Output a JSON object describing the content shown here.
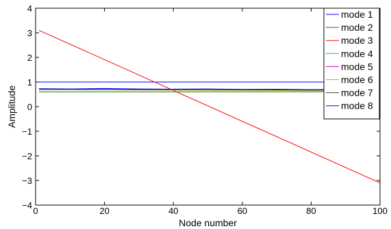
{
  "chart_data": {
    "type": "line",
    "title": "",
    "xlabel": "Node number",
    "ylabel": "Amplitude",
    "xlim": [
      0,
      100
    ],
    "ylim": [
      -4,
      4
    ],
    "xticks": [
      0,
      20,
      40,
      60,
      80,
      100
    ],
    "yticks": [
      -4,
      -3,
      -2,
      -1,
      0,
      1,
      2,
      3,
      4
    ],
    "ytick_labels": [
      "−4",
      "−3",
      "−2",
      "−1",
      "0",
      "1",
      "2",
      "3",
      "4"
    ],
    "grid": false,
    "legend_position": "top-right",
    "series": [
      {
        "name": "mode 1",
        "color": "#0000ff",
        "x": [
          1,
          100
        ],
        "y": [
          1.0,
          1.0
        ]
      },
      {
        "name": "mode 2",
        "color": "#008000",
        "x": [
          1,
          100
        ],
        "y": [
          0.6,
          0.6
        ]
      },
      {
        "name": "mode 3",
        "color": "#ff0000",
        "x": [
          1,
          100
        ],
        "y": [
          3.1,
          -3.1
        ]
      },
      {
        "name": "mode 4",
        "color": "#00bfbf",
        "x": [
          1,
          20,
          40,
          60,
          80,
          100
        ],
        "y": [
          0.7,
          0.69,
          0.68,
          0.67,
          0.66,
          0.65
        ]
      },
      {
        "name": "mode 5",
        "color": "#bf00bf",
        "x": [
          1,
          20,
          40,
          60,
          80,
          100
        ],
        "y": [
          0.71,
          0.7,
          0.69,
          0.68,
          0.67,
          0.66
        ]
      },
      {
        "name": "mode 6",
        "color": "#bfbf00",
        "x": [
          1,
          20,
          40,
          60,
          80,
          100
        ],
        "y": [
          0.69,
          0.68,
          0.67,
          0.66,
          0.65,
          0.64
        ]
      },
      {
        "name": "mode 7",
        "color": "#404040",
        "x": [
          1,
          10,
          30,
          50,
          70,
          90,
          100
        ],
        "y": [
          0.7,
          0.7,
          0.69,
          0.69,
          0.68,
          0.67,
          0.66
        ]
      },
      {
        "name": "mode 8",
        "color": "#0000ff",
        "x": [
          1,
          10,
          20,
          30,
          40,
          50,
          60,
          70,
          80,
          90,
          100
        ],
        "y": [
          0.73,
          0.72,
          0.74,
          0.72,
          0.71,
          0.72,
          0.7,
          0.71,
          0.69,
          0.7,
          0.68
        ]
      }
    ]
  }
}
